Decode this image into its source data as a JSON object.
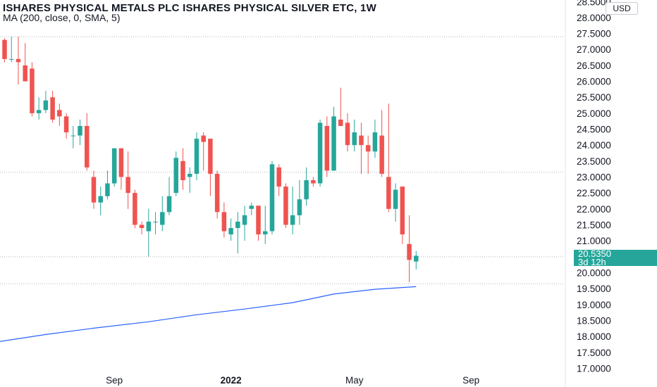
{
  "header": {
    "title": "ISHARES PHYSICAL METALS PLC ISHARES PHYSICAL SILVER ETC, 1W",
    "indicator": "MA (200, close, 0, SMA, 5)"
  },
  "price_axis": {
    "currency": "USD",
    "last_price": "20.5350",
    "countdown": "3d 12h"
  },
  "colors": {
    "up": "#26a69a",
    "down": "#ef5350",
    "ma_line": "#2962ff",
    "grid": "#b2b5be",
    "text": "#131722"
  },
  "chart_data": {
    "type": "candlestick",
    "ylim": [
      16.9,
      28.55
    ],
    "y_ticks": [
      17.0,
      17.5,
      18.0,
      18.5,
      19.0,
      19.5,
      20.0,
      20.5,
      21.0,
      21.5,
      22.0,
      22.5,
      23.0,
      23.5,
      24.0,
      24.5,
      25.0,
      25.5,
      26.0,
      26.5,
      27.0,
      27.5,
      28.0,
      28.5
    ],
    "y_tick_labels": [
      "17.0000",
      "17.5000",
      "18.0000",
      "18.5000",
      "19.0000",
      "19.5000",
      "20.0000",
      "20.5000",
      "21.0000",
      "21.5000",
      "22.0000",
      "22.5000",
      "23.0000",
      "23.5000",
      "24.0000",
      "24.5000",
      "25.0000",
      "25.5000",
      "26.0000",
      "26.5000",
      "27.0000",
      "27.5000",
      "28.0000",
      "28.5000"
    ],
    "x_ticks": [
      {
        "label": "Sep",
        "week": 16,
        "bold": false
      },
      {
        "label": "2022",
        "week": 33,
        "bold": true
      },
      {
        "label": "May",
        "week": 51,
        "bold": false
      },
      {
        "label": "Sep",
        "week": 68,
        "bold": false
      }
    ],
    "dotted_price_lines": [
      27.4,
      23.15,
      20.5,
      19.65
    ],
    "candles": [
      [
        27.3,
        26.7,
        27.35,
        26.6
      ],
      [
        26.7,
        26.7,
        27.4,
        26.6
      ],
      [
        26.7,
        26.6,
        27.4,
        25.9
      ],
      [
        26.5,
        26.0,
        27.2,
        26.1
      ],
      [
        26.4,
        25.0,
        26.6,
        24.9
      ],
      [
        25.0,
        25.1,
        25.5,
        24.8
      ],
      [
        25.1,
        25.4,
        25.7,
        25.0
      ],
      [
        25.5,
        24.8,
        25.7,
        24.7
      ],
      [
        25.1,
        24.9,
        25.3,
        24.6
      ],
      [
        24.9,
        24.4,
        25.0,
        24.2
      ],
      [
        24.3,
        24.3,
        24.6,
        23.9
      ],
      [
        24.3,
        24.6,
        24.8,
        24.0
      ],
      [
        24.6,
        23.3,
        25.0,
        23.2
      ],
      [
        23.0,
        22.2,
        23.2,
        22.0
      ],
      [
        22.2,
        22.4,
        22.7,
        21.8
      ],
      [
        22.4,
        22.8,
        23.2,
        22.3
      ],
      [
        22.8,
        23.9,
        23.9,
        22.7
      ],
      [
        23.9,
        23.0,
        23.9,
        22.6
      ],
      [
        23.0,
        22.5,
        23.8,
        22.0
      ],
      [
        22.5,
        21.5,
        22.6,
        21.4
      ],
      [
        21.5,
        21.4,
        21.6,
        21.2
      ],
      [
        21.3,
        21.6,
        22.0,
        20.5
      ],
      [
        21.6,
        21.6,
        21.9,
        21.2
      ],
      [
        21.5,
        21.9,
        22.4,
        21.3
      ],
      [
        21.9,
        22.4,
        23.0,
        21.8
      ],
      [
        22.5,
        23.6,
        23.8,
        22.4
      ],
      [
        23.5,
        22.9,
        23.9,
        22.6
      ],
      [
        23.0,
        23.1,
        23.3,
        22.5
      ],
      [
        23.1,
        24.2,
        24.4,
        22.9
      ],
      [
        24.3,
        24.1,
        24.4,
        23.2
      ],
      [
        24.2,
        23.1,
        24.2,
        22.4
      ],
      [
        23.1,
        21.9,
        23.2,
        21.7
      ],
      [
        21.9,
        21.3,
        22.2,
        21.1
      ],
      [
        21.2,
        21.4,
        21.7,
        21.0
      ],
      [
        21.4,
        21.6,
        21.9,
        20.6
      ],
      [
        21.5,
        21.8,
        22.1,
        21.0
      ],
      [
        22.0,
        22.1,
        22.2,
        21.8
      ],
      [
        22.1,
        21.2,
        22.1,
        21.0
      ],
      [
        21.2,
        21.3,
        22.1,
        20.9
      ],
      [
        21.3,
        23.4,
        23.5,
        21.2
      ],
      [
        23.3,
        22.7,
        23.4,
        22.4
      ],
      [
        22.7,
        21.5,
        22.8,
        21.4
      ],
      [
        21.5,
        21.8,
        22.7,
        21.2
      ],
      [
        21.8,
        22.3,
        22.9,
        21.5
      ],
      [
        22.3,
        22.9,
        23.3,
        22.1
      ],
      [
        22.9,
        22.8,
        23.0,
        22.7
      ],
      [
        22.8,
        24.7,
        24.8,
        22.7
      ],
      [
        24.6,
        23.2,
        24.9,
        23.0
      ],
      [
        23.2,
        24.9,
        25.2,
        24.6
      ],
      [
        24.8,
        24.6,
        25.8,
        24.6
      ],
      [
        24.7,
        24.0,
        25.0,
        23.8
      ],
      [
        24.0,
        24.4,
        24.8,
        23.8
      ],
      [
        24.3,
        24.0,
        24.7,
        23.1
      ],
      [
        24.0,
        23.8,
        24.3,
        23.1
      ],
      [
        23.8,
        24.4,
        24.8,
        23.6
      ],
      [
        24.3,
        23.1,
        25.1,
        23.0
      ],
      [
        23.0,
        22.0,
        25.3,
        21.9
      ],
      [
        22.0,
        22.6,
        22.8,
        21.6
      ],
      [
        22.7,
        21.2,
        22.7,
        20.9
      ],
      [
        20.9,
        20.4,
        21.8,
        19.7
      ],
      [
        20.35,
        20.53,
        20.68,
        20.1
      ]
    ],
    "ma_line": {
      "name": "MA (200, close, 0, SMA, 5)",
      "points": [
        [
          -2,
          17.8
        ],
        [
          6,
          18.06
        ],
        [
          13,
          18.26
        ],
        [
          21,
          18.46
        ],
        [
          28,
          18.68
        ],
        [
          35,
          18.86
        ],
        [
          42,
          19.06
        ],
        [
          48,
          19.33
        ],
        [
          54,
          19.48
        ],
        [
          60,
          19.56
        ]
      ]
    }
  }
}
